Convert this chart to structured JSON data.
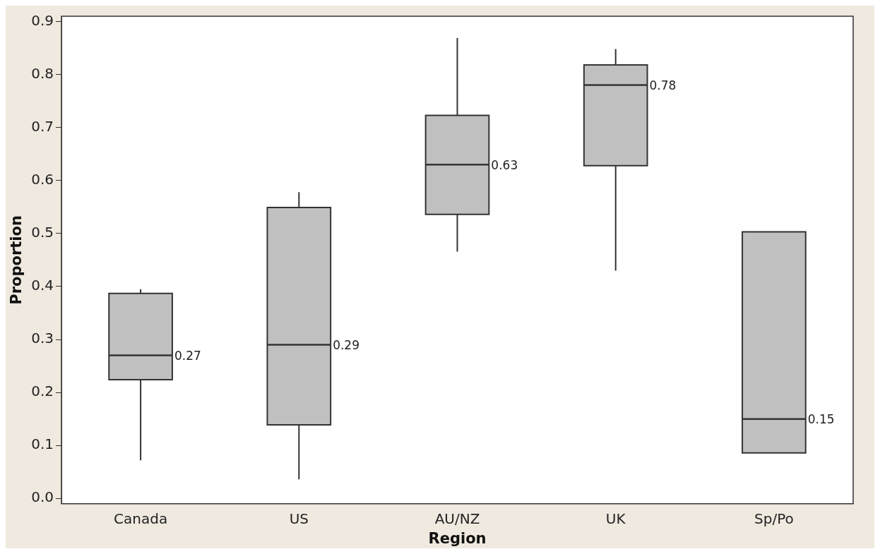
{
  "chart_data": {
    "type": "box",
    "xlabel": "Region",
    "ylabel": "Proportion",
    "categories": [
      "Canada",
      "US",
      "AU/NZ",
      "UK",
      "Sp/Po"
    ],
    "boxes": [
      {
        "low": 0.072,
        "q1": 0.224,
        "median": 0.27,
        "q3": 0.387,
        "high": 0.395
      },
      {
        "low": 0.036,
        "q1": 0.139,
        "median": 0.29,
        "q3": 0.549,
        "high": 0.578
      },
      {
        "low": 0.466,
        "q1": 0.536,
        "median": 0.63,
        "q3": 0.723,
        "high": 0.869
      },
      {
        "low": 0.43,
        "q1": 0.628,
        "median": 0.78,
        "q3": 0.818,
        "high": 0.848
      },
      {
        "low": 0.086,
        "q1": 0.086,
        "median": 0.15,
        "q3": 0.503,
        "high": 0.503
      }
    ],
    "color": "#c0c0c0",
    "ylim": [
      -0.01,
      0.91
    ],
    "yticks": [
      {
        "value": 0,
        "label": "0.0"
      },
      0.1,
      0.2,
      0.3,
      0.4,
      0.5,
      0.6,
      0.7,
      0.8,
      0.9
    ],
    "grid": false,
    "legend": false,
    "annotations": [
      {
        "text": "0.27",
        "x": "Canada",
        "y": 0.27
      },
      {
        "text": "0.29",
        "x": "US",
        "y": 0.29
      },
      {
        "text": "0.63",
        "x": "AU/NZ",
        "y": 0.63
      },
      {
        "text": "0.78",
        "x": "UK",
        "y": 0.78
      },
      {
        "text": "0.15",
        "x": "Sp/Po",
        "y": 0.15
      }
    ]
  }
}
